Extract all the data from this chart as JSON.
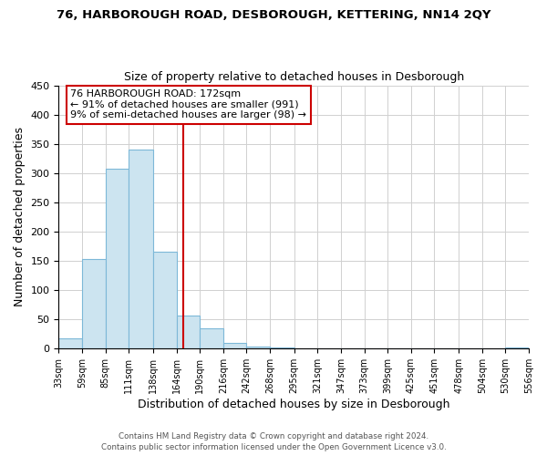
{
  "title": "76, HARBOROUGH ROAD, DESBOROUGH, KETTERING, NN14 2QY",
  "subtitle": "Size of property relative to detached houses in Desborough",
  "xlabel": "Distribution of detached houses by size in Desborough",
  "ylabel": "Number of detached properties",
  "bar_color": "#cce4f0",
  "bar_edge_color": "#7db8d8",
  "annotation_box_color": "#ffffff",
  "annotation_box_edge": "#cc0000",
  "vline_color": "#cc0000",
  "vline_x": 172,
  "bin_edges": [
    33,
    59,
    85,
    111,
    138,
    164,
    190,
    216,
    242,
    268,
    295,
    321,
    347,
    373,
    399,
    425,
    451,
    478,
    504,
    530,
    556
  ],
  "bin_labels": [
    "33sqm",
    "59sqm",
    "85sqm",
    "111sqm",
    "138sqm",
    "164sqm",
    "190sqm",
    "216sqm",
    "242sqm",
    "268sqm",
    "295sqm",
    "321sqm",
    "347sqm",
    "373sqm",
    "399sqm",
    "425sqm",
    "451sqm",
    "478sqm",
    "504sqm",
    "530sqm",
    "556sqm"
  ],
  "bar_heights": [
    18,
    153,
    307,
    340,
    166,
    57,
    35,
    10,
    3,
    2,
    1,
    1,
    1,
    0,
    0,
    0,
    0,
    0,
    0,
    2
  ],
  "ylim": [
    0,
    450
  ],
  "yticks": [
    0,
    50,
    100,
    150,
    200,
    250,
    300,
    350,
    400,
    450
  ],
  "annotation_title": "76 HARBOROUGH ROAD: 172sqm",
  "annotation_line1": "← 91% of detached houses are smaller (991)",
  "annotation_line2": "9% of semi-detached houses are larger (98) →",
  "footer1": "Contains HM Land Registry data © Crown copyright and database right 2024.",
  "footer2": "Contains public sector information licensed under the Open Government Licence v3.0."
}
